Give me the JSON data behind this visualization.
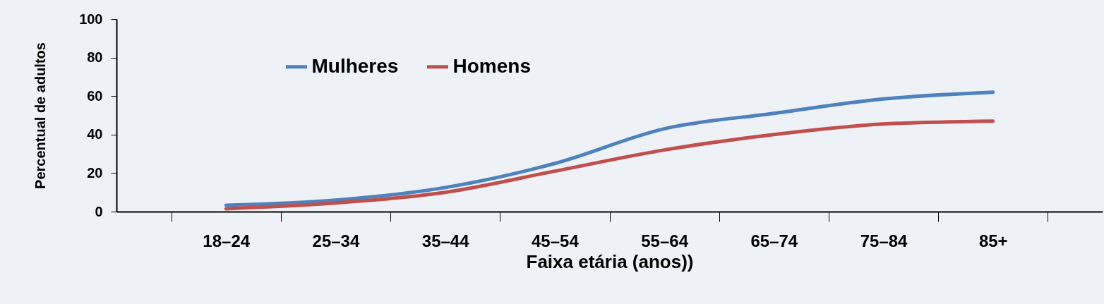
{
  "chart_data": {
    "type": "line",
    "xlabel": "Faixa etária (anos))",
    "ylabel": "Percentual de adultos",
    "categories": [
      "18–24",
      "25–34",
      "35–44",
      "45–54",
      "55–64",
      "65–74",
      "75–84",
      "85+"
    ],
    "series": [
      {
        "name": "Mulheres",
        "color": "#4f81bd",
        "values": [
          3.3,
          6,
          12.5,
          25,
          43,
          51,
          58.5,
          62
        ]
      },
      {
        "name": "Homens",
        "color": "#c0504d",
        "values": [
          1.5,
          4.5,
          10,
          21,
          32,
          40,
          45.5,
          47
        ]
      }
    ],
    "ylim": [
      0,
      100
    ],
    "yticks": [
      0,
      20,
      40,
      60,
      80,
      100
    ],
    "grid": false,
    "legend": "top left",
    "marker": "none",
    "line_style": "solid"
  }
}
